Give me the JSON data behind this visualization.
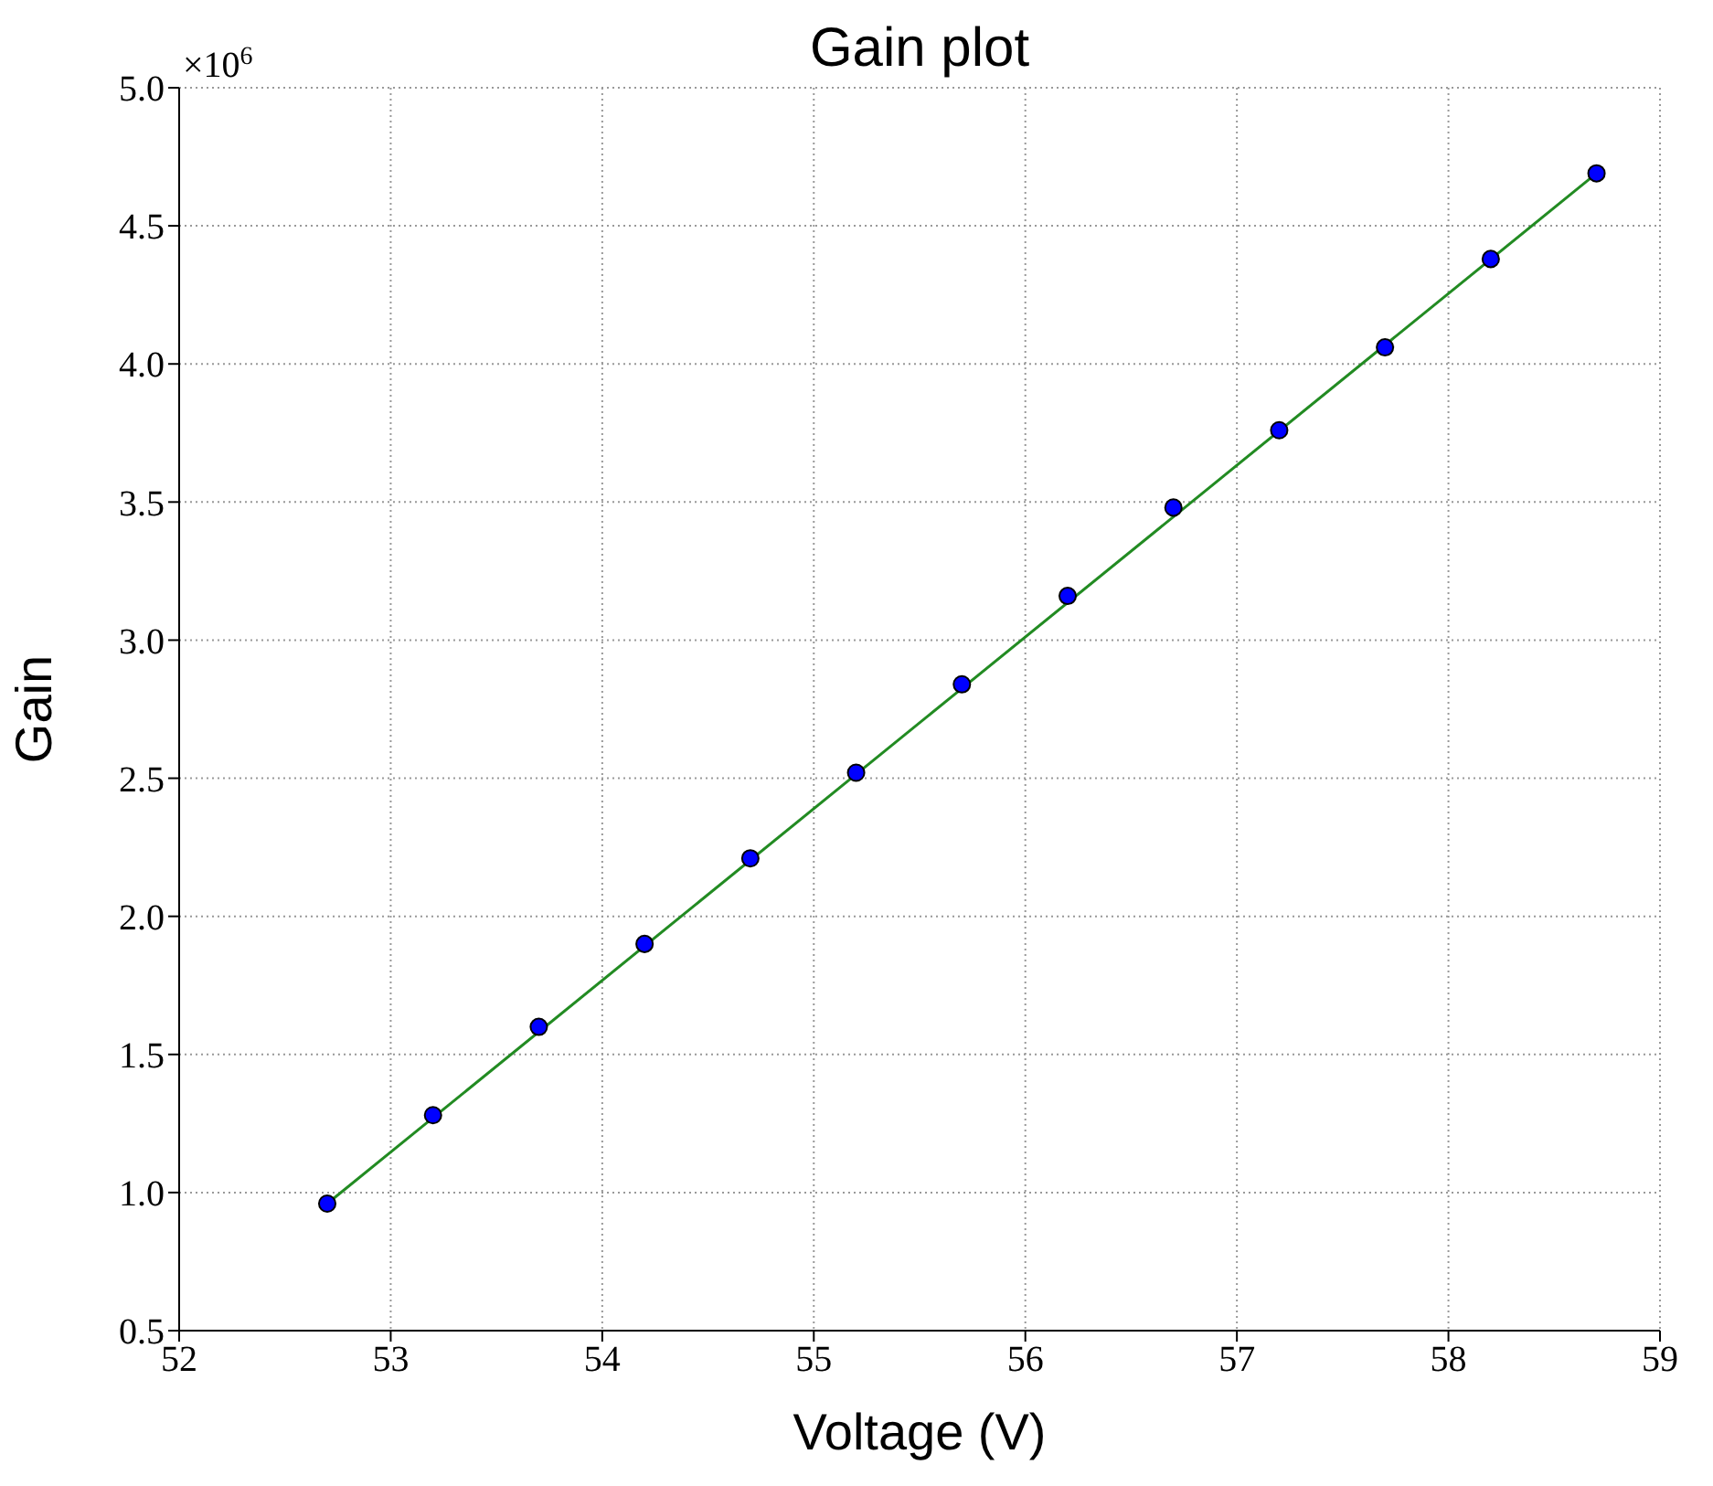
{
  "chart_data": {
    "type": "scatter",
    "title": "Gain plot",
    "xlabel": "Voltage (V)",
    "ylabel": "Gain",
    "x": [
      52.7,
      53.2,
      53.7,
      54.2,
      54.7,
      55.2,
      55.7,
      56.2,
      56.7,
      57.2,
      57.7,
      58.2,
      58.7
    ],
    "series": [
      {
        "type": "line",
        "color": "#228b22",
        "x": [
          52.7,
          58.7
        ],
        "values": [
          0.96,
          4.69
        ],
        "marker": "none",
        "line_style": "solid"
      },
      {
        "color": "#0000ff",
        "values": [
          0.96,
          1.28,
          1.6,
          1.9,
          2.21,
          2.52,
          2.84,
          3.16,
          3.48,
          3.76,
          4.06,
          4.38,
          4.69
        ],
        "marker": "circle"
      }
    ],
    "xlim": [
      52,
      59
    ],
    "xticks": [
      52,
      53,
      54,
      55,
      56,
      57,
      58,
      59
    ],
    "ylim": [
      0.5,
      5.0
    ],
    "yticks": [
      {
        "value": 0.5,
        "label": "0.5"
      },
      {
        "value": 1.0,
        "label": "1.0"
      },
      {
        "value": 1.5,
        "label": "1.5"
      },
      {
        "value": 2.0,
        "label": "2.0"
      },
      {
        "value": 2.5,
        "label": "2.5"
      },
      {
        "value": 3.0,
        "label": "3.0"
      },
      {
        "value": 3.5,
        "label": "3.5"
      },
      {
        "value": 4.0,
        "label": "4.0"
      },
      {
        "value": 4.5,
        "label": "4.5"
      },
      {
        "value": 5.0,
        "label": "5.0"
      }
    ],
    "annotations": [
      "×10$^{6}$"
    ],
    "grid": true
  }
}
